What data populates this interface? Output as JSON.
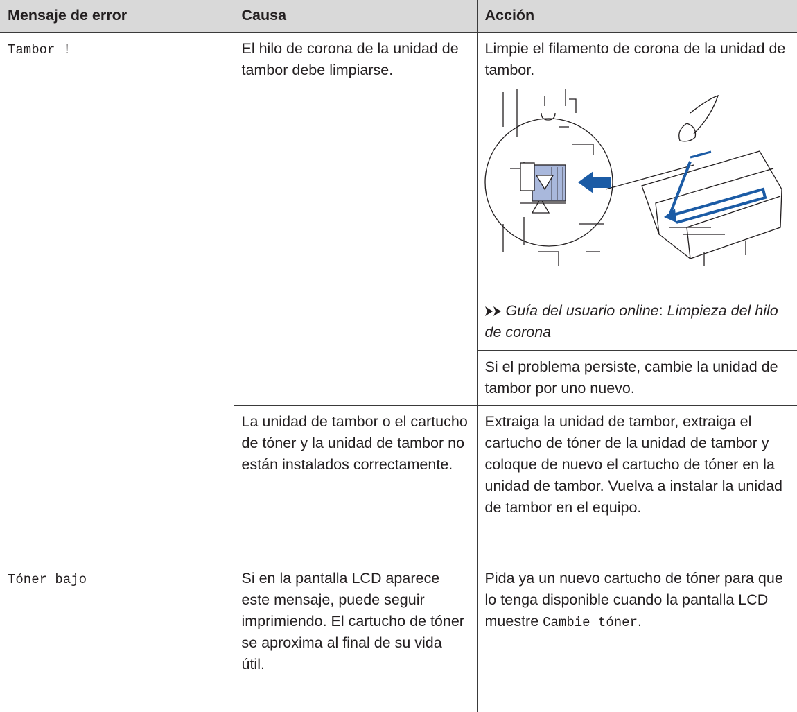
{
  "table": {
    "header": [
      "Mensaje de error",
      "Causa",
      "Acción"
    ],
    "rows": [
      {
        "message": "Tambor !",
        "causes": [
          {
            "cause": "El hilo de corona de la unidad de tambor debe limpiarse.",
            "action": {
              "text": "Limpie el filamento de corona de la unidad de tambor.",
              "reference": {
                "guide": "Guía del usuario online",
                "separator": ":",
                "topic": "Limpieza del hilo de corona"
              },
              "note": "Si el problema persiste, cambie la unidad de tambor por uno nuevo."
            }
          },
          {
            "cause": "La unidad de tambor o el cartucho de tóner y la unidad de tambor no están instalados correctamente.",
            "action": {
              "text": "Extraiga la unidad de tambor, extraiga el cartucho de tóner de la unidad de tambor y coloque de nuevo el cartucho de tóner en la unidad de tambor. Vuelva a instalar la unidad de tambor en el equipo."
            }
          }
        ]
      },
      {
        "message": "Tóner bajo",
        "causes": [
          {
            "cause": "Si en la pantalla LCD aparece este mensaje, puede seguir imprimiendo. El cartucho de tóner se aproxima al final de su vida útil.",
            "action": {
              "text": "Pida ya un nuevo cartucho de tóner para que lo tenga disponible cuando la pantalla LCD muestre",
              "code": "Cambie tóner",
              "end": "."
            }
          }
        ]
      }
    ]
  }
}
